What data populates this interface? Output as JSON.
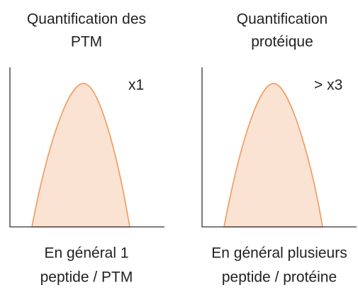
{
  "panels": [
    {
      "title": [
        "Quantification des",
        "PTM"
      ],
      "factor": "x1",
      "caption": [
        "En général 1",
        "peptide / PTM"
      ]
    },
    {
      "title": [
        "Quantification",
        "protéique"
      ],
      "factor": "> x3",
      "caption": [
        "En général plusieurs",
        "peptide / protéine"
      ]
    }
  ]
}
